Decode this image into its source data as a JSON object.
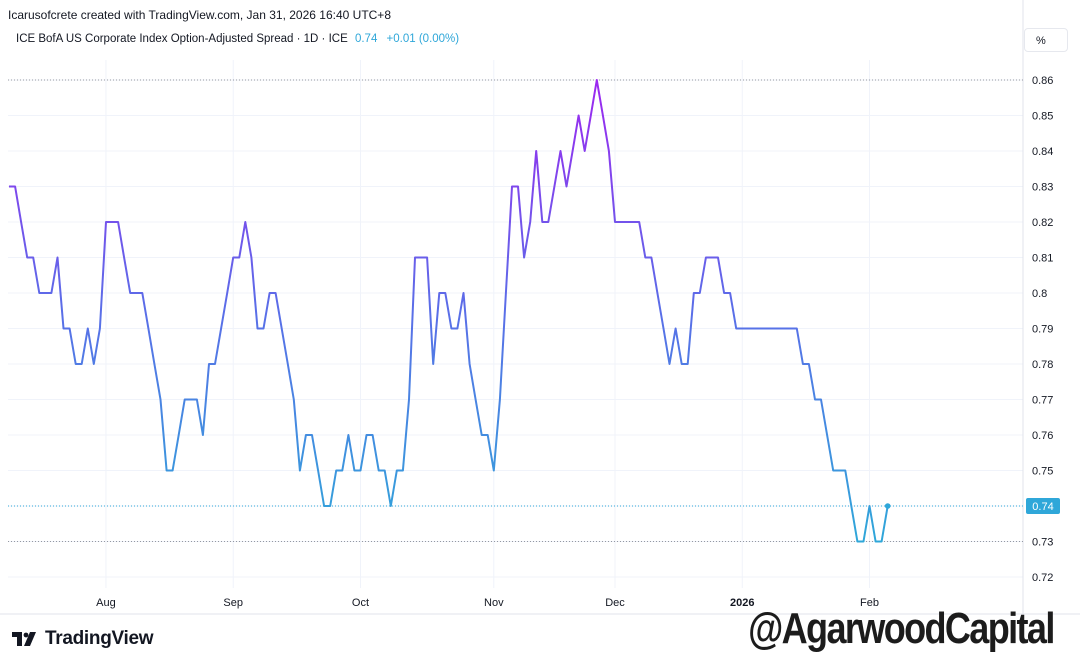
{
  "header": {
    "credit": "Icarusofcrete created with TradingView.com, Jan 31, 2026 16:40 UTC+8",
    "symbol_title": "ICE BofA US Corporate Index Option-Adjusted Spread · 1D · ICE",
    "last_value": "0.74",
    "change": "+0.01 (0.00%)",
    "unit_button": "%"
  },
  "footer": {
    "brand": "TradingView",
    "watermark": "@AgarwoodCapital"
  },
  "colors": {
    "line_top": "#9c27f0",
    "line_mid": "#5a6ee8",
    "line_bottom": "#2fa7d9",
    "last_value_label": "#2fa7d9",
    "grid": "#f0f3fa"
  },
  "icons": {
    "brand": "tradingview-logo-icon"
  },
  "chart_data": {
    "type": "line",
    "title": "ICE BofA US Corporate Index Option-Adjusted Spread",
    "xlabel": "",
    "ylabel": "%",
    "ylim": [
      0.715,
      0.871
    ],
    "y_ticks": [
      "0.86",
      "0.85",
      "0.84",
      "0.83",
      "0.82",
      "0.81",
      "0.8",
      "0.79",
      "0.78",
      "0.77",
      "0.76",
      "0.75",
      "0.74",
      "0.73",
      "0.72"
    ],
    "x_ticks": [
      {
        "label": "Aug",
        "index": 16,
        "bold": false
      },
      {
        "label": "Sep",
        "index": 37,
        "bold": false
      },
      {
        "label": "Oct",
        "index": 58,
        "bold": false
      },
      {
        "label": "Nov",
        "index": 80,
        "bold": false
      },
      {
        "label": "Dec",
        "index": 100,
        "bold": false
      },
      {
        "label": "2026",
        "index": 121,
        "bold": true
      },
      {
        "label": "Feb",
        "index": 142,
        "bold": false
      }
    ],
    "grid": true,
    "last_value": 0.74,
    "period_max": 0.86,
    "period_min": 0.73,
    "series": [
      {
        "values": [
          0.83,
          0.83,
          0.82,
          0.81,
          0.81,
          0.8,
          0.8,
          0.8,
          0.81,
          0.79,
          0.79,
          0.78,
          0.78,
          0.79,
          0.78,
          0.79,
          0.82,
          0.82,
          0.82,
          0.81,
          0.8,
          0.8,
          0.8,
          0.79,
          0.78,
          0.77,
          0.75,
          0.75,
          0.76,
          0.77,
          0.77,
          0.77,
          0.76,
          0.78,
          0.78,
          0.79,
          0.8,
          0.81,
          0.81,
          0.82,
          0.81,
          0.79,
          0.79,
          0.8,
          0.8,
          0.79,
          0.78,
          0.77,
          0.75,
          0.76,
          0.76,
          0.75,
          0.74,
          0.74,
          0.75,
          0.75,
          0.76,
          0.75,
          0.75,
          0.76,
          0.76,
          0.75,
          0.75,
          0.74,
          0.75,
          0.75,
          0.77,
          0.81,
          0.81,
          0.81,
          0.78,
          0.8,
          0.8,
          0.79,
          0.79,
          0.8,
          0.78,
          0.77,
          0.76,
          0.76,
          0.75,
          0.77,
          0.8,
          0.83,
          0.83,
          0.81,
          0.82,
          0.84,
          0.82,
          0.82,
          0.83,
          0.84,
          0.83,
          0.84,
          0.85,
          0.84,
          0.85,
          0.86,
          0.85,
          0.84,
          0.82,
          0.82,
          0.82,
          0.82,
          0.82,
          0.81,
          0.81,
          0.8,
          0.79,
          0.78,
          0.79,
          0.78,
          0.78,
          0.8,
          0.8,
          0.81,
          0.81,
          0.81,
          0.8,
          0.8,
          0.79,
          0.79,
          0.79,
          0.79,
          0.79,
          0.79,
          0.79,
          0.79,
          0.79,
          0.79,
          0.79,
          0.78,
          0.78,
          0.77,
          0.77,
          0.76,
          0.75,
          0.75,
          0.75,
          0.74,
          0.73,
          0.73,
          0.74,
          0.73,
          0.73,
          0.74
        ]
      }
    ]
  }
}
